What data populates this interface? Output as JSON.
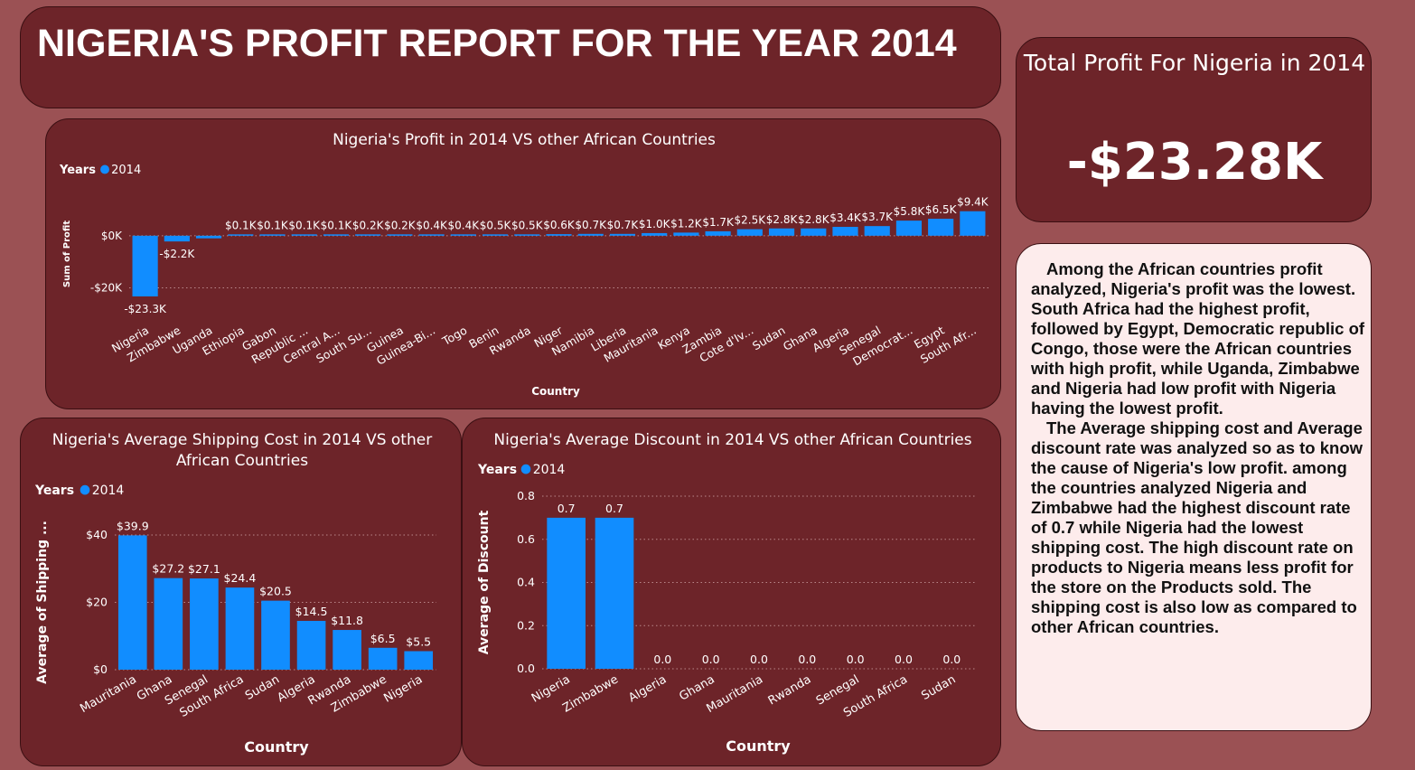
{
  "title": "NIGERIA'S PROFIT REPORT FOR THE YEAR 2014",
  "kpi": {
    "label": "Total Profit For Nigeria in 2014",
    "value": "-$23.28K"
  },
  "analysis": [
    "Among the African countries profit analyzed, Nigeria's profit was the lowest. South Africa had the highest profit, followed by Egypt, Democratic republic of Congo, those were the African countries with high profit, while Uganda, Zimbabwe and Nigeria had low profit with Nigeria having the lowest profit.",
    "The Average shipping cost and Average discount rate was analyzed so as to know the cause of Nigeria's low profit. among the countries analyzed Nigeria and Zimbabwe had the highest discount rate of 0.7 while Nigeria had the lowest shipping cost. The high discount rate on products to Nigeria means less profit for the store on the Products sold. The shipping cost is also low as compared to other African countries."
  ],
  "colors": {
    "background": "#9b5154",
    "panel": "#6d2429",
    "bar": "#118dff",
    "text_panel": "#fdecec"
  },
  "chart_data": [
    {
      "type": "bar",
      "title": "Nigeria's Profit in 2014 VS other African Countries",
      "legend_title": "Years",
      "series": [
        {
          "name": "2014",
          "values": [
            -23.3,
            -2.2,
            -1.0,
            0.1,
            0.1,
            0.1,
            0.1,
            0.2,
            0.2,
            0.4,
            0.4,
            0.5,
            0.5,
            0.6,
            0.7,
            0.7,
            1.0,
            1.2,
            1.7,
            2.5,
            2.8,
            2.8,
            3.4,
            3.7,
            5.8,
            6.5,
            9.4
          ]
        }
      ],
      "categories": [
        "Nigeria",
        "Zimbabwe",
        "Uganda",
        "Ethiopia",
        "Gabon",
        "Republic ...",
        "Central A...",
        "South Su...",
        "Guinea",
        "Guinea-Bi...",
        "Togo",
        "Benin",
        "Rwanda",
        "Niger",
        "Namibia",
        "Liberia",
        "Mauritania",
        "Kenya",
        "Zambia",
        "Cote d'Iv...",
        "Sudan",
        "Ghana",
        "Algeria",
        "Senegal",
        "Democrat...",
        "Egypt",
        "South Afr..."
      ],
      "data_labels": [
        "-$23.3K",
        "-$2.2K",
        "",
        "$0.1K",
        "$0.1K",
        "$0.1K",
        "$0.1K",
        "$0.2K",
        "$0.2K",
        "$0.4K",
        "$0.4K",
        "$0.5K",
        "$0.5K",
        "$0.6K",
        "$0.7K",
        "$0.7K",
        "$1.0K",
        "$1.2K",
        "$1.7K",
        "$2.5K",
        "$2.8K",
        "$2.8K",
        "$3.4K",
        "$3.7K",
        "$5.8K",
        "$6.5K",
        "$9.4K"
      ],
      "xlabel": "Country",
      "ylabel": "Sum of Profit",
      "ylim": [
        -24,
        10
      ],
      "yticks": [
        {
          "v": 0,
          "label": "$0K"
        },
        {
          "v": -20,
          "label": "-$20K"
        }
      ],
      "unit": "thousand dollars",
      "grid": true
    },
    {
      "type": "bar",
      "title": "Nigeria's Average Shipping Cost in 2014 VS other African Countries",
      "legend_title": "Years",
      "series": [
        {
          "name": "2014",
          "values": [
            39.9,
            27.2,
            27.1,
            24.4,
            20.5,
            14.5,
            11.8,
            6.5,
            5.5
          ]
        }
      ],
      "categories": [
        "Mauritania",
        "Ghana",
        "Senegal",
        "South Africa",
        "Sudan",
        "Algeria",
        "Rwanda",
        "Zimbabwe",
        "Nigeria"
      ],
      "data_labels": [
        "$39.9",
        "$27.2",
        "$27.1",
        "$24.4",
        "$20.5",
        "$14.5",
        "$11.8",
        "$6.5",
        "$5.5"
      ],
      "xlabel": "Country",
      "ylabel": "Average of Shipping ...",
      "ylim": [
        0,
        40
      ],
      "yticks": [
        {
          "v": 0,
          "label": "$0"
        },
        {
          "v": 20,
          "label": "$20"
        },
        {
          "v": 40,
          "label": "$40"
        }
      ],
      "grid": true
    },
    {
      "type": "bar",
      "title": "Nigeria's Average Discount in 2014 VS other African Countries",
      "legend_title": "Years",
      "series": [
        {
          "name": "2014",
          "values": [
            0.7,
            0.7,
            0.0,
            0.0,
            0.0,
            0.0,
            0.0,
            0.0,
            0.0
          ]
        }
      ],
      "categories": [
        "Nigeria",
        "Zimbabwe",
        "Algeria",
        "Ghana",
        "Mauritania",
        "Rwanda",
        "Senegal",
        "South Africa",
        "Sudan"
      ],
      "data_labels": [
        "0.7",
        "0.7",
        "0.0",
        "0.0",
        "0.0",
        "0.0",
        "0.0",
        "0.0",
        "0.0"
      ],
      "xlabel": "Country",
      "ylabel": "Average of Discount",
      "ylim": [
        0,
        0.8
      ],
      "yticks": [
        {
          "v": 0,
          "label": "0.0"
        },
        {
          "v": 0.2,
          "label": "0.2"
        },
        {
          "v": 0.4,
          "label": "0.4"
        },
        {
          "v": 0.6,
          "label": "0.6"
        },
        {
          "v": 0.8,
          "label": "0.8"
        }
      ],
      "grid": true
    }
  ]
}
